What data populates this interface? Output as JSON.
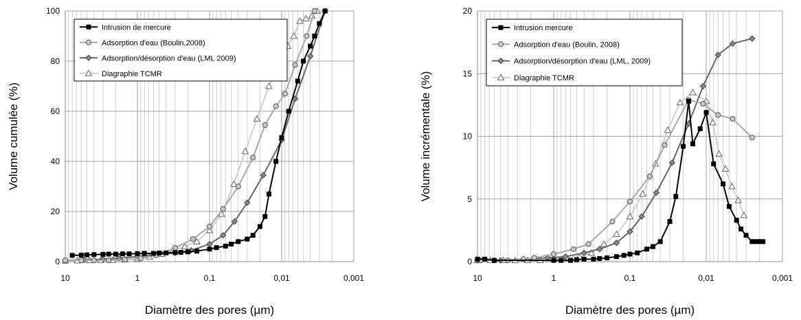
{
  "chart_data": [
    {
      "type": "scatter",
      "xscale": "log-reversed",
      "xlim": [
        10,
        0.001
      ],
      "ylim": [
        0,
        100
      ],
      "xticks": [
        "10",
        "1",
        "0,1",
        "0,01",
        "0,001"
      ],
      "yticks": [
        "0",
        "20",
        "40",
        "60",
        "80",
        "100"
      ],
      "xlabel": "Diamètre des pores (µm)",
      "ylabel": "Volume cumulée (%)",
      "grid": "vertical minor",
      "legend_position": "top-left",
      "series": [
        {
          "name": "Intrusion de mercure",
          "marker": "square",
          "color": "#000000",
          "x": [
            8,
            6,
            5,
            4,
            3,
            2.5,
            2,
            1.6,
            1.3,
            1,
            0.8,
            0.6,
            0.5,
            0.4,
            0.3,
            0.25,
            0.2,
            0.15,
            0.1,
            0.08,
            0.06,
            0.05,
            0.04,
            0.03,
            0.025,
            0.02,
            0.017,
            0.015,
            0.012,
            0.01,
            0.008,
            0.006,
            0.005,
            0.004,
            0.0035,
            0.003,
            0.0025
          ],
          "y": [
            2.5,
            2.6,
            2.7,
            2.8,
            2.9,
            3.0,
            3.0,
            3.1,
            3.1,
            3.2,
            3.3,
            3.3,
            3.4,
            3.5,
            3.6,
            3.7,
            3.9,
            4.2,
            5.0,
            5.6,
            6.2,
            7.0,
            8.0,
            9.0,
            10.5,
            14,
            18,
            27,
            40,
            49.5,
            60,
            72,
            80,
            86,
            90,
            95,
            100
          ]
        },
        {
          "name": "Adsorption d'eau (Boulin,2008)",
          "marker": "circle",
          "color": "#999999",
          "x": [
            10,
            6,
            4,
            2.5,
            1.5,
            0.9,
            0.55,
            0.3,
            0.17,
            0.1,
            0.065,
            0.04,
            0.025,
            0.017,
            0.012,
            0.009,
            0.0065,
            0.0045,
            0.0035
          ],
          "y": [
            0.5,
            0.5,
            0.5,
            0.5,
            0.8,
            1.3,
            2.5,
            5.5,
            9,
            14,
            21,
            30,
            41.5,
            54.5,
            62,
            67,
            78.5,
            90,
            100
          ]
        },
        {
          "name": "Adsorption/désorption d'eau (LML 2009)",
          "marker": "diamond",
          "color": "#666666",
          "x": [
            10,
            5.5,
            3,
            1.8,
            1,
            0.55,
            0.3,
            0.18,
            0.1,
            0.065,
            0.045,
            0.03,
            0.018,
            0.01,
            0.0065,
            0.004,
            0.0025
          ],
          "y": [
            0.5,
            0.7,
            1.0,
            1.4,
            2.0,
            2.7,
            3.5,
            4.5,
            7,
            10.5,
            16,
            23.5,
            34.5,
            48.5,
            65,
            82,
            100
          ]
        },
        {
          "name": "Diagraphie TCMR",
          "marker": "triangle",
          "color": "#cccccc",
          "x": [
            10,
            6.8,
            4.6,
            3.2,
            2.2,
            1.5,
            1,
            0.68,
            0.46,
            0.32,
            0.22,
            0.15,
            0.1,
            0.068,
            0.046,
            0.032,
            0.022,
            0.015,
            0.01,
            0.0082,
            0.0068,
            0.0056,
            0.0046,
            0.0038,
            0.0032
          ],
          "y": [
            0.3,
            0.4,
            0.5,
            0.5,
            0.6,
            0.8,
            1.2,
            2.0,
            3.0,
            4.5,
            6.0,
            8.0,
            12.5,
            19,
            31,
            44,
            57,
            70,
            81,
            86,
            90,
            96,
            97,
            98,
            100
          ]
        }
      ]
    },
    {
      "type": "scatter",
      "xscale": "log-reversed",
      "xlim": [
        10,
        0.001
      ],
      "ylim": [
        0,
        20
      ],
      "xticks": [
        "10",
        "1",
        "0,1",
        "0,01",
        "0,001"
      ],
      "yticks": [
        "0",
        "5",
        "10",
        "15",
        "20"
      ],
      "xlabel": "Diamètre des pores (µm)",
      "ylabel": "Volume incrémentale (%)",
      "grid": "vertical minor",
      "legend_position": "top-left",
      "series": [
        {
          "name": "Intrusion mercure",
          "marker": "square",
          "color": "#000000",
          "x": [
            10,
            8,
            6,
            1,
            0.8,
            0.6,
            0.5,
            0.4,
            0.3,
            0.25,
            0.2,
            0.15,
            0.12,
            0.1,
            0.08,
            0.06,
            0.05,
            0.04,
            0.03,
            0.025,
            0.02,
            0.017,
            0.015,
            0.012,
            0.01,
            0.008,
            0.006,
            0.005,
            0.004,
            0.0035,
            0.003,
            0.0025,
            0.0022,
            0.002,
            0.0018
          ],
          "y": [
            0.2,
            0.2,
            0.1,
            0.1,
            0.1,
            0.1,
            0.15,
            0.2,
            0.2,
            0.25,
            0.3,
            0.4,
            0.5,
            0.6,
            0.7,
            1.0,
            1.2,
            1.6,
            3.2,
            5.2,
            9.2,
            12.8,
            9.4,
            10.6,
            11.9,
            7.8,
            6.2,
            4.4,
            3.3,
            2.6,
            2.1,
            1.6,
            1.6,
            1.6,
            1.6
          ]
        },
        {
          "name": "Adsorption d'eau (Boulin, 2008)",
          "marker": "circle",
          "color": "#999999",
          "x": [
            9,
            6,
            4,
            2.5,
            1.8,
            1,
            0.55,
            0.35,
            0.17,
            0.1,
            0.055,
            0.035,
            0.017,
            0.011,
            0.007,
            0.0045,
            0.0025
          ],
          "y": [
            0.1,
            0.1,
            0.1,
            0.2,
            0.3,
            0.6,
            1.0,
            1.4,
            3.2,
            4.8,
            6.8,
            9.3,
            12.9,
            12.6,
            11.7,
            11.4,
            9.9
          ]
        },
        {
          "name": "Adsorption/désorption d'eau (LML, 2009)",
          "marker": "diamond",
          "color": "#666666",
          "x": [
            10,
            5,
            2.5,
            1.2,
            0.7,
            0.4,
            0.25,
            0.15,
            0.1,
            0.07,
            0.045,
            0.028,
            0.017,
            0.011,
            0.007,
            0.0045,
            0.0025
          ],
          "y": [
            0.1,
            0.1,
            0.2,
            0.3,
            0.4,
            0.7,
            1.0,
            1.5,
            2.4,
            3.6,
            5.5,
            7.9,
            11,
            14,
            16.5,
            17.4,
            17.8
          ]
        },
        {
          "name": "Diagraphie TCMR",
          "marker": "triangle",
          "color": "#cccccc",
          "x": [
            10,
            6.8,
            4.6,
            3.2,
            2.2,
            1.5,
            1,
            0.68,
            0.46,
            0.32,
            0.22,
            0.15,
            0.1,
            0.068,
            0.046,
            0.032,
            0.022,
            0.015,
            0.01,
            0.0082,
            0.0068,
            0.0056,
            0.0046,
            0.0038,
            0.0032
          ],
          "y": [
            0.1,
            0.1,
            0.1,
            0.1,
            0.1,
            0.1,
            0.2,
            0.3,
            0.4,
            0.7,
            1.4,
            2.2,
            3.6,
            5.4,
            7.8,
            10.5,
            12.7,
            13.5,
            12.8,
            11.1,
            8.6,
            7.4,
            6.0,
            4.9,
            3.7
          ]
        }
      ]
    }
  ]
}
